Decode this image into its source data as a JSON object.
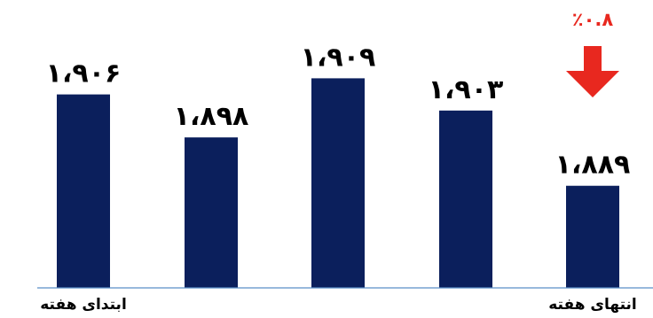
{
  "chart_data": {
    "type": "bar",
    "categories": [
      "ابتدای هفته",
      "",
      "",
      "",
      "انتهای هفته"
    ],
    "values": [
      1906,
      1898,
      1909,
      1903,
      1889
    ],
    "data_labels": [
      "۱،۹۰۶",
      "۱،۸۹۸",
      "۱،۹۰۹",
      "۱،۹۰۳",
      "۱،۸۸۹"
    ],
    "title": "",
    "xlabel": "",
    "ylabel": "",
    "ylim": [
      1870,
      1915
    ],
    "grid": false,
    "bar_color": "#0b1f5c",
    "axis_color": "#5b8fc7",
    "annotation": {
      "text": "٪۰.۸",
      "direction": "down",
      "color": "#e8281f"
    }
  }
}
